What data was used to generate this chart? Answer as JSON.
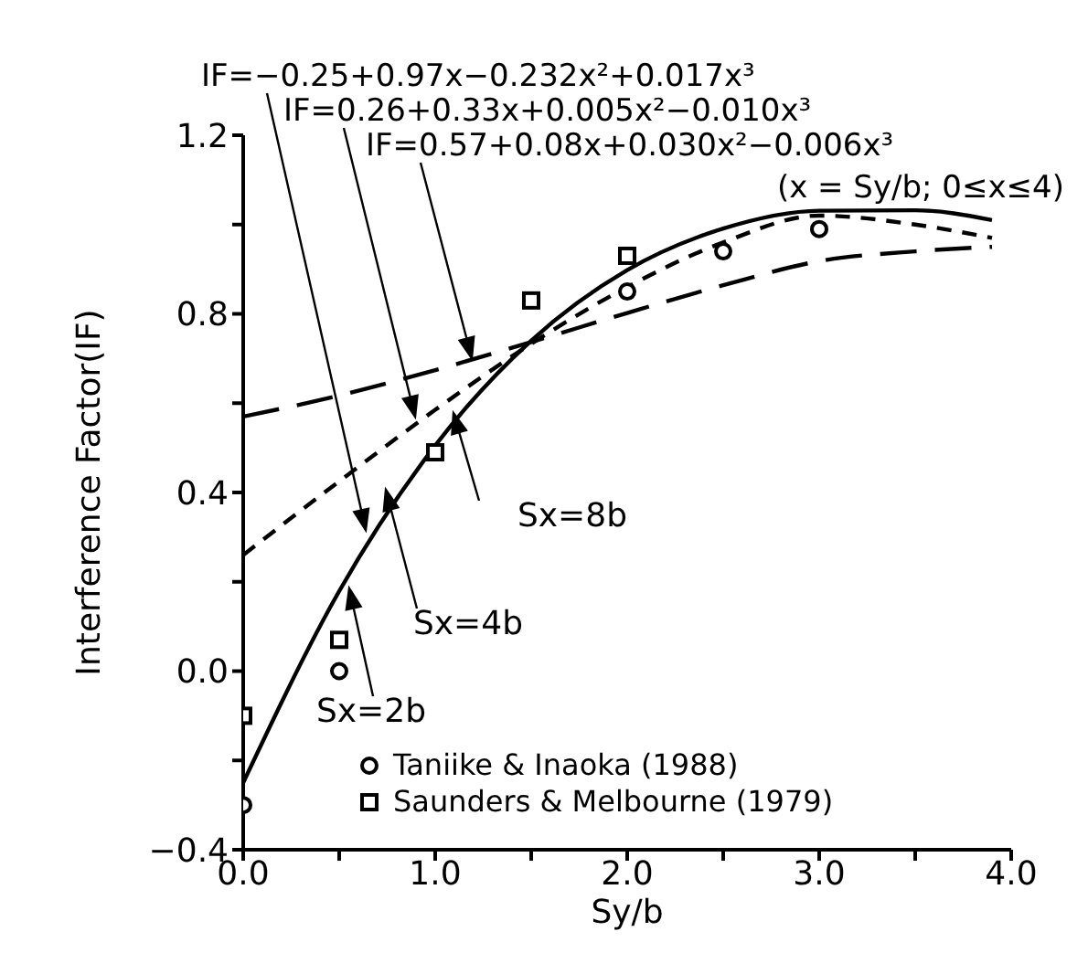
{
  "chart_data": {
    "type": "line",
    "xlabel": "Sy/b",
    "ylabel": "Interference Factor(IF)",
    "xlim": [
      0,
      4
    ],
    "ylim": [
      -0.4,
      1.2
    ],
    "xticks": [
      {
        "value": 0,
        "label": "0.0"
      },
      {
        "value": 0.5,
        "label": null
      },
      {
        "value": 1,
        "label": "1.0"
      },
      {
        "value": 1.5,
        "label": null
      },
      {
        "value": 2,
        "label": "2.0"
      },
      {
        "value": 2.5,
        "label": null
      },
      {
        "value": 3,
        "label": "3.0"
      },
      {
        "value": 3.5,
        "label": null
      },
      {
        "value": 4,
        "label": "4.0"
      }
    ],
    "yticks": [
      {
        "value": -0.4,
        "label": "−0.4"
      },
      {
        "value": -0.2,
        "label": null
      },
      {
        "value": 0,
        "label": "0.0"
      },
      {
        "value": 0.2,
        "label": null
      },
      {
        "value": 0.4,
        "label": "0.4"
      },
      {
        "value": 0.6,
        "label": null
      },
      {
        "value": 0.8,
        "label": "0.8"
      },
      {
        "value": 1.0,
        "label": null
      },
      {
        "value": 1.2,
        "label": "1.2"
      }
    ],
    "grid": false,
    "legend": "bottom right",
    "series": [
      {
        "type": "line",
        "color": "#000000",
        "line_style": "solid",
        "marker": "none",
        "x": [
          0,
          0.5,
          1,
          1.5,
          2,
          2.5,
          3,
          3.5,
          3.9
        ],
        "values": [
          -0.25,
          0.179,
          0.505,
          0.74,
          0.898,
          0.991,
          1.031,
          1.032,
          1.01
        ]
      },
      {
        "type": "line",
        "color": "#000000",
        "line_style": "dashed",
        "marker": "none",
        "x": [
          0,
          0.5,
          1,
          1.5,
          2,
          2.5,
          3,
          3.5,
          3.9
        ],
        "values": [
          0.26,
          0.425,
          0.585,
          0.733,
          0.86,
          0.96,
          1.02,
          1.0,
          0.97
        ]
      },
      {
        "type": "line",
        "color": "#000000",
        "line_style": "dashed",
        "marker": "none",
        "x": [
          0,
          0.5,
          1,
          1.5,
          2,
          2.5,
          3,
          3.5,
          3.9
        ],
        "values": [
          0.57,
          0.617,
          0.674,
          0.737,
          0.802,
          0.864,
          0.918,
          0.94,
          0.95
        ]
      },
      {
        "type": "scatter",
        "name": "Taniike & Inaoka (1988)",
        "color": "#000000",
        "marker": "circle",
        "x": [
          0,
          0.5,
          2,
          2.5,
          3
        ],
        "values": [
          -0.3,
          0.0,
          0.85,
          0.94,
          0.99
        ]
      },
      {
        "type": "scatter",
        "name": "Saunders & Melbourne (1979)",
        "color": "#000000",
        "marker": "square",
        "x": [
          0,
          0.5,
          1,
          1.5,
          2
        ],
        "values": [
          -0.1,
          0.07,
          0.49,
          0.83,
          0.93
        ]
      }
    ],
    "annotations": [
      "IF=−0.25+0.97x−0.232x²+0.017x³",
      "IF=0.26+0.33x+0.005x²−0.010x³",
      "IF=0.57+0.08x+0.030x²−0.006x³",
      "(x = Sy/b; 0≤x≤4)",
      "Sx=2b",
      "Sx=4b",
      "Sx=8b"
    ]
  }
}
